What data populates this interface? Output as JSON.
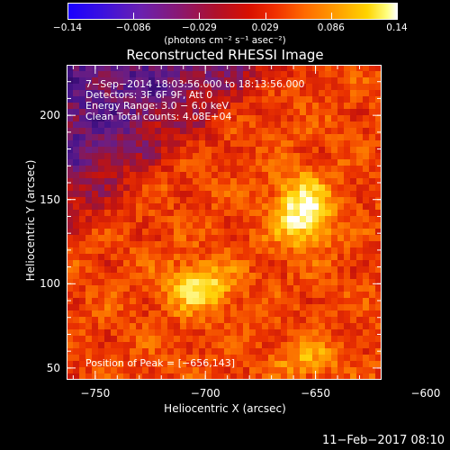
{
  "colorbar": {
    "ticks": [
      "−0.14",
      "−0.086",
      "−0.029",
      "0.029",
      "0.086",
      "0.14"
    ],
    "unit": "(photons cm⁻² s⁻¹ asec⁻²)",
    "range": [
      -0.14,
      0.14
    ],
    "colormap": "rainbow-like (blue-purple-red-orange-yellow-white)"
  },
  "chart_data": {
    "type": "heatmap",
    "title": "Reconstructed RHESSI Image",
    "xlabel": "Heliocentric X (arcsec)",
    "ylabel": "Heliocentric Y (arcsec)",
    "xlim": [
      -763,
      -620
    ],
    "ylim": [
      43,
      230
    ],
    "xticks": [
      "−750",
      "−700",
      "−650",
      "−600"
    ],
    "yticks": [
      "50",
      "100",
      "150",
      "200"
    ],
    "annotations": [
      "7−Sep−2014 18:03:56.000 to 18:13:56.000",
      "Detectors: 3F 6F 9F, Att 0",
      "Energy Range: 3.0 − 6.0 keV",
      "Clean     Total counts: 4.08E+04"
    ],
    "peak_label": "Position of Peak = [−656,143]",
    "peak": [
      -656,
      143
    ],
    "secondary_peak": [
      -703,
      98
    ]
  },
  "footer": "11−Feb−2017 08:10"
}
